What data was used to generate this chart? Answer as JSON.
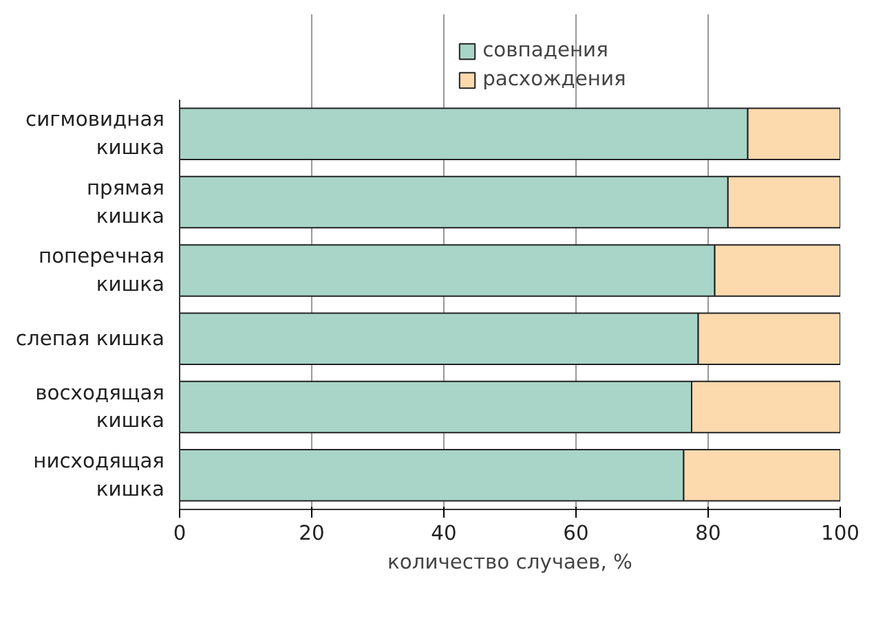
{
  "chart_data": {
    "type": "bar",
    "orientation": "horizontal",
    "stacked": true,
    "xlabel": "количество случаев, %",
    "categories": [
      "сигмовидная\nкишка",
      "прямая\nкишка",
      "поперечная\nкишка",
      "слепая кишка",
      "восходящая\nкишка",
      "нисходящая\nкишка"
    ],
    "series": [
      {
        "name": "совпадения",
        "color": "#a8d5c8",
        "values": [
          86,
          83,
          81,
          78.5,
          77.5,
          76.3
        ]
      },
      {
        "name": "расхождения",
        "color": "#fdd9ae",
        "values": [
          14,
          17,
          19,
          21.5,
          22.5,
          23.7
        ]
      }
    ],
    "xlim": [
      0,
      100
    ],
    "xticks": [
      0,
      20,
      40,
      60,
      80,
      100
    ],
    "grid": "x",
    "legend": "top"
  }
}
